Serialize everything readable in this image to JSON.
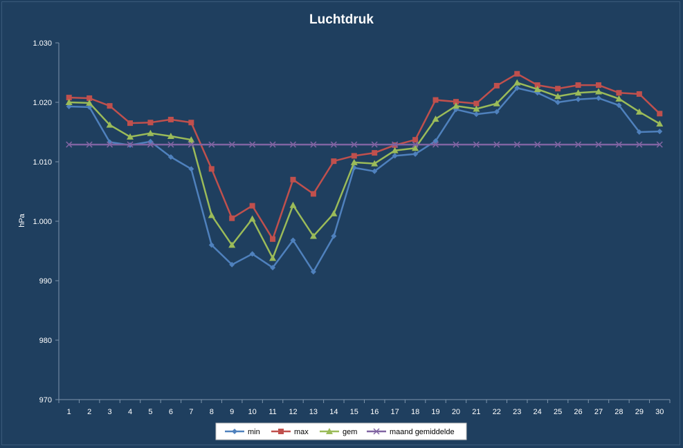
{
  "chart_data": {
    "type": "line",
    "title": "Luchtdruk",
    "xlabel": "",
    "ylabel": "hPa",
    "ylim": [
      970,
      1030
    ],
    "y_ticks": [
      "970",
      "980",
      "990",
      "1.000",
      "1.010",
      "1.020",
      "1.030"
    ],
    "y_tick_values": [
      970,
      980,
      990,
      1000,
      1010,
      1020,
      1030
    ],
    "categories": [
      "1",
      "2",
      "3",
      "4",
      "5",
      "6",
      "7",
      "8",
      "9",
      "10",
      "11",
      "12",
      "13",
      "14",
      "15",
      "16",
      "17",
      "18",
      "19",
      "20",
      "21",
      "22",
      "23",
      "24",
      "25",
      "26",
      "27",
      "28",
      "29",
      "30"
    ],
    "grid": false,
    "legend": "bottom",
    "series": [
      {
        "name": "min",
        "color": "#4f81bd",
        "marker": "diamond",
        "values": [
          1019.3,
          1019.2,
          1013.3,
          1012.8,
          1013.4,
          1010.8,
          1008.8,
          996.0,
          992.7,
          994.5,
          992.2,
          996.8,
          991.5,
          997.5,
          1009.0,
          1008.4,
          1011.0,
          1011.3,
          1013.5,
          1018.8,
          1018.0,
          1018.4,
          1022.4,
          1021.6,
          1020.0,
          1020.5,
          1020.7,
          1019.5,
          1015.0,
          1015.1
        ]
      },
      {
        "name": "max",
        "color": "#c0504d",
        "marker": "square",
        "values": [
          1020.8,
          1020.7,
          1019.4,
          1016.5,
          1016.6,
          1017.1,
          1016.6,
          1008.8,
          1000.5,
          1002.6,
          997.0,
          1007.0,
          1004.6,
          1010.1,
          1011.0,
          1011.5,
          1012.8,
          1013.7,
          1020.4,
          1020.1,
          1019.8,
          1022.8,
          1024.8,
          1022.9,
          1022.3,
          1022.9,
          1022.9,
          1021.6,
          1021.4,
          1018.1
        ]
      },
      {
        "name": "gem",
        "color": "#9bbb59",
        "marker": "triangle",
        "values": [
          1020.0,
          1019.9,
          1016.2,
          1014.2,
          1014.8,
          1014.3,
          1013.7,
          1001.0,
          996.0,
          1000.4,
          993.8,
          1002.7,
          997.5,
          1001.3,
          1009.9,
          1009.7,
          1011.9,
          1012.3,
          1017.2,
          1019.4,
          1018.9,
          1019.8,
          1023.3,
          1022.2,
          1021.0,
          1021.6,
          1021.8,
          1020.6,
          1018.4,
          1016.4
        ]
      },
      {
        "name": "maand gemiddelde",
        "color": "#8064a2",
        "marker": "x",
        "values": [
          1012.9,
          1012.9,
          1012.9,
          1012.9,
          1012.9,
          1012.9,
          1012.9,
          1012.9,
          1012.9,
          1012.9,
          1012.9,
          1012.9,
          1012.9,
          1012.9,
          1012.9,
          1012.9,
          1012.9,
          1012.9,
          1012.9,
          1012.9,
          1012.9,
          1012.9,
          1012.9,
          1012.9,
          1012.9,
          1012.9,
          1012.9,
          1012.9,
          1012.9,
          1012.9
        ]
      }
    ]
  }
}
